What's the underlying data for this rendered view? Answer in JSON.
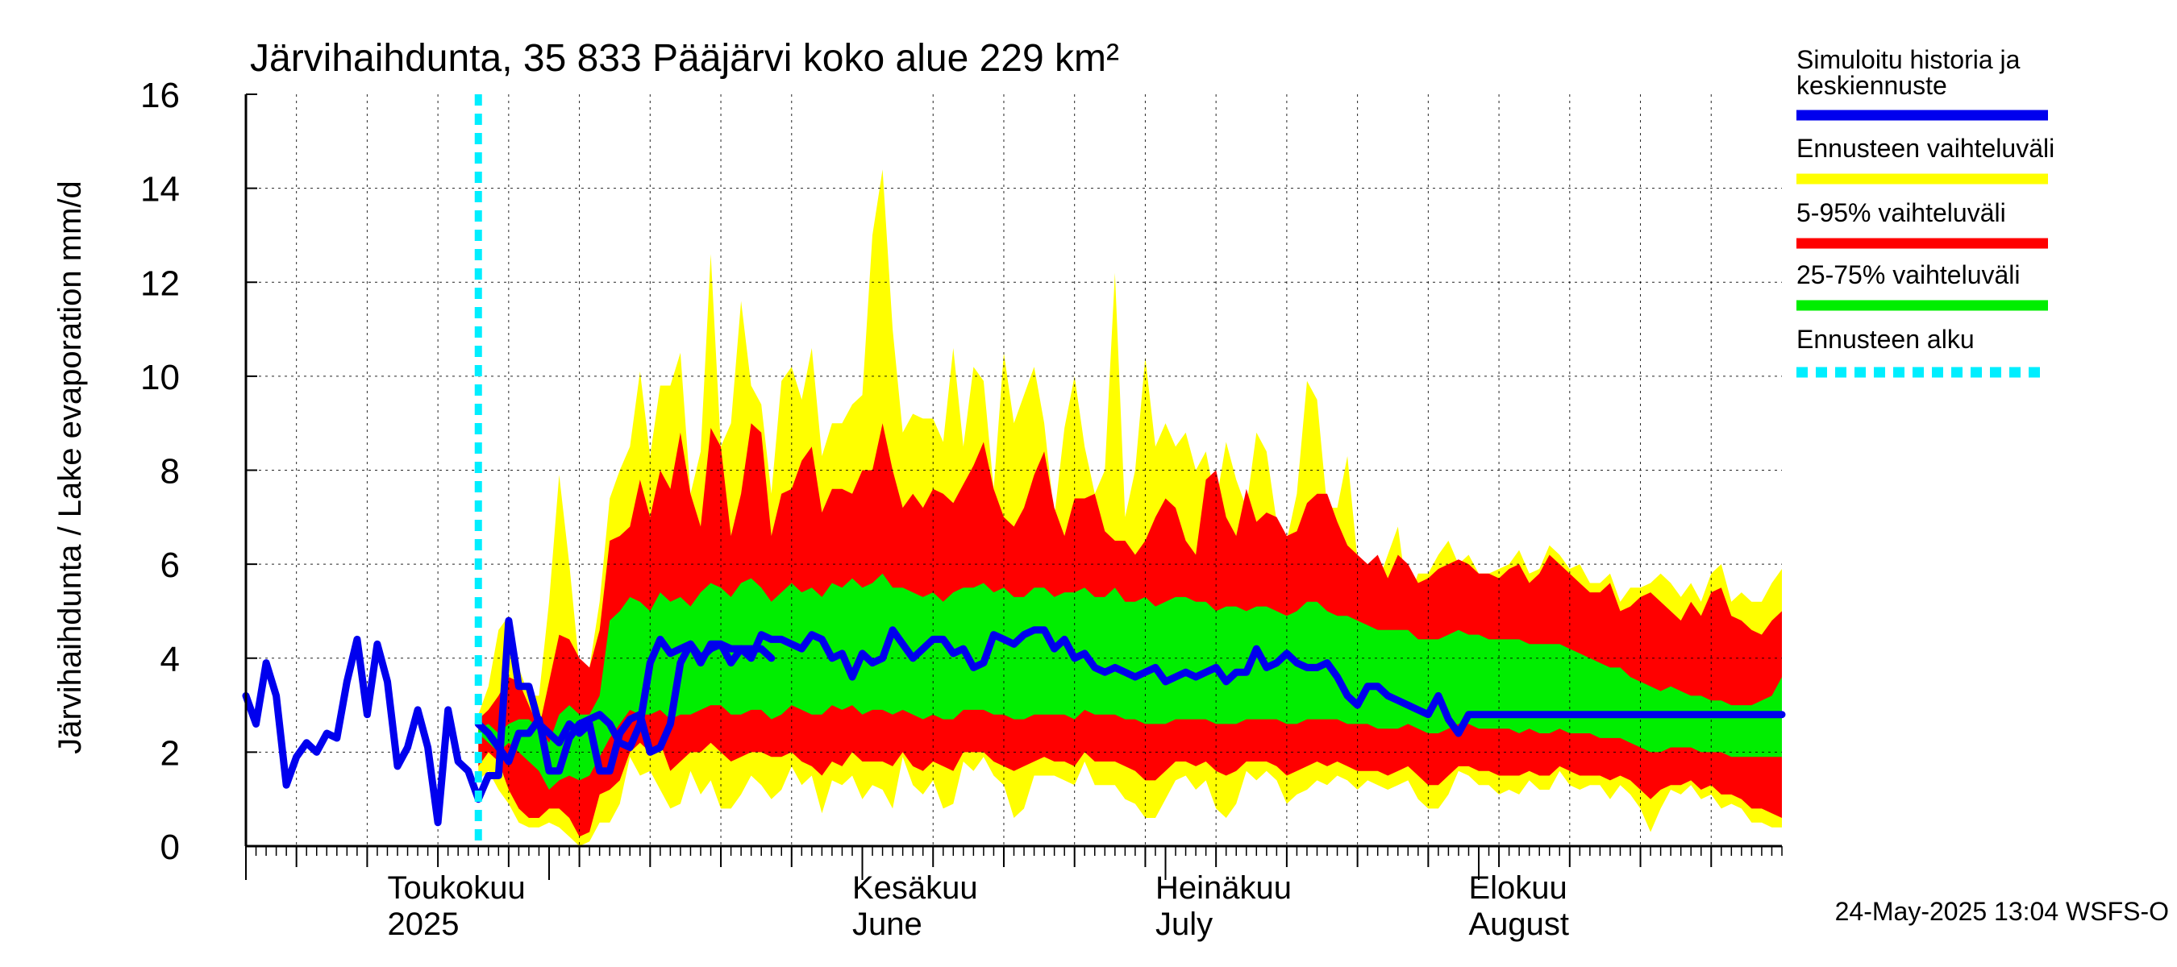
{
  "chart_data": {
    "type": "area",
    "title": "Järvihaihdunta, 35 833 Pääjärvi koko alue 229 km²",
    "ylabel": "Järvihaihdunta / Lake evaporation   mm/d",
    "xlabel": "",
    "ylim": [
      0,
      16
    ],
    "yticks": [
      0,
      2,
      4,
      6,
      8,
      10,
      12,
      14,
      16
    ],
    "grid": true,
    "legend_position": "right",
    "footer": "24-May-2025 13:04 WSFS-O",
    "x_start": "2025-04-01",
    "x_end": "2025-08-31",
    "forecast_start": "2025-04-24",
    "month_labels": [
      {
        "date": "2025-04-15",
        "line1": "Toukokuu",
        "line2": "2025"
      },
      {
        "date": "2025-05-31",
        "line1": "Kesäkuu",
        "line2": "June"
      },
      {
        "date": "2025-06-30",
        "line1": "Heinäkuu",
        "line2": "July"
      },
      {
        "date": "2025-07-31",
        "line1": "Elokuu",
        "line2": "August"
      }
    ],
    "month_boundaries": [
      "2025-04-01",
      "2025-05-01",
      "2025-06-01",
      "2025-07-01",
      "2025-08-01"
    ],
    "week_ticks": [
      "2025-04-06",
      "2025-04-13",
      "2025-04-20",
      "2025-04-27",
      "2025-05-04",
      "2025-05-11",
      "2025-05-18",
      "2025-05-25",
      "2025-06-08",
      "2025-06-15",
      "2025-06-22",
      "2025-06-29",
      "2025-07-06",
      "2025-07-13",
      "2025-07-20",
      "2025-07-27",
      "2025-08-03",
      "2025-08-10",
      "2025-08-17",
      "2025-08-24"
    ],
    "legend": [
      {
        "label": "Simuloitu historia ja keskiennuste",
        "color": "#0000ee",
        "style": "solid"
      },
      {
        "label": "Ennusteen vaihteluväli",
        "color": "#ffff00",
        "style": "solid"
      },
      {
        "label": "5-95% vaihteluväli",
        "color": "#ff0000",
        "style": "solid"
      },
      {
        "label": "25-75% vaihteluväli",
        "color": "#00ee00",
        "style": "solid"
      },
      {
        "label": "Ennusteen alku",
        "color": "#00eeff",
        "style": "dashed"
      }
    ],
    "history": {
      "name": "Simuloitu historia ja keskiennuste",
      "x": [
        "2025-04-01",
        "2025-04-02",
        "2025-04-03",
        "2025-04-04",
        "2025-04-05",
        "2025-04-06",
        "2025-04-07",
        "2025-04-08",
        "2025-04-09",
        "2025-04-10",
        "2025-04-11",
        "2025-04-12",
        "2025-04-13",
        "2025-04-14",
        "2025-04-15",
        "2025-04-16",
        "2025-04-17",
        "2025-04-18",
        "2025-04-19",
        "2025-04-20",
        "2025-04-21",
        "2025-04-22",
        "2025-04-23",
        "2025-04-24",
        "2025-04-25",
        "2025-04-26",
        "2025-04-27",
        "2025-04-28",
        "2025-04-29",
        "2025-04-30",
        "2025-05-01",
        "2025-05-02",
        "2025-05-03",
        "2025-05-04",
        "2025-05-05",
        "2025-05-06",
        "2025-05-07",
        "2025-05-08",
        "2025-05-09",
        "2025-05-10",
        "2025-05-11",
        "2025-05-12",
        "2025-05-13",
        "2025-05-14",
        "2025-05-15",
        "2025-05-16",
        "2025-05-17",
        "2025-05-18",
        "2025-05-19",
        "2025-05-20",
        "2025-05-21",
        "2025-05-22",
        "2025-05-23"
      ],
      "y": [
        3.2,
        2.6,
        3.9,
        3.2,
        1.3,
        1.9,
        2.2,
        2.0,
        2.4,
        2.3,
        3.5,
        4.4,
        2.8,
        4.3,
        3.5,
        1.7,
        2.1,
        2.9,
        2.1,
        0.5,
        2.9,
        1.8,
        1.6,
        1.0,
        1.5,
        1.5,
        4.8,
        3.4,
        3.4,
        2.6,
        2.4,
        2.2,
        2.6,
        2.4,
        2.6,
        1.6,
        1.6,
        2.4,
        2.7,
        2.8,
        2.0,
        2.1,
        2.6,
        3.9,
        4.3,
        4.0,
        4.2,
        4.3,
        3.9,
        4.2,
        4.2,
        4.2,
        4.0
      ]
    },
    "forecast": {
      "x": [
        "2025-04-24",
        "2025-04-25",
        "2025-04-26",
        "2025-04-27",
        "2025-04-28",
        "2025-04-29",
        "2025-04-30",
        "2025-05-01",
        "2025-05-02",
        "2025-05-03",
        "2025-05-04",
        "2025-05-05",
        "2025-05-06",
        "2025-05-07",
        "2025-05-08",
        "2025-05-09",
        "2025-05-10",
        "2025-05-11",
        "2025-05-12",
        "2025-05-13",
        "2025-05-14",
        "2025-05-15",
        "2025-05-16",
        "2025-05-17",
        "2025-05-18",
        "2025-05-19",
        "2025-05-20",
        "2025-05-21",
        "2025-05-22",
        "2025-05-23",
        "2025-05-24",
        "2025-05-25",
        "2025-05-26",
        "2025-05-27",
        "2025-05-28",
        "2025-05-29",
        "2025-05-30",
        "2025-05-31",
        "2025-06-01",
        "2025-06-02",
        "2025-06-03",
        "2025-06-04",
        "2025-06-05",
        "2025-06-06",
        "2025-06-07",
        "2025-06-08",
        "2025-06-09",
        "2025-06-10",
        "2025-06-11",
        "2025-06-12",
        "2025-06-13",
        "2025-06-14",
        "2025-06-15",
        "2025-06-16",
        "2025-06-17",
        "2025-06-18",
        "2025-06-19",
        "2025-06-20",
        "2025-06-21",
        "2025-06-22",
        "2025-06-23",
        "2025-06-24",
        "2025-06-25",
        "2025-06-26",
        "2025-06-27",
        "2025-06-28",
        "2025-06-29",
        "2025-06-30",
        "2025-07-01",
        "2025-07-02",
        "2025-07-03",
        "2025-07-04",
        "2025-07-05",
        "2025-07-06",
        "2025-07-07",
        "2025-07-08",
        "2025-07-09",
        "2025-07-10",
        "2025-07-11",
        "2025-07-12",
        "2025-07-13",
        "2025-07-14",
        "2025-07-15",
        "2025-07-16",
        "2025-07-17",
        "2025-07-18",
        "2025-07-19",
        "2025-07-20",
        "2025-07-21",
        "2025-07-22",
        "2025-07-23",
        "2025-07-24",
        "2025-07-25",
        "2025-07-26",
        "2025-07-27",
        "2025-07-28",
        "2025-07-29",
        "2025-07-30",
        "2025-07-31",
        "2025-08-01",
        "2025-08-02",
        "2025-08-03",
        "2025-08-04",
        "2025-08-05",
        "2025-08-06",
        "2025-08-07",
        "2025-08-08",
        "2025-08-09",
        "2025-08-10",
        "2025-08-11",
        "2025-08-12",
        "2025-08-13",
        "2025-08-14",
        "2025-08-15",
        "2025-08-16",
        "2025-08-17",
        "2025-08-18",
        "2025-08-19",
        "2025-08-20",
        "2025-08-21",
        "2025-08-22",
        "2025-08-23",
        "2025-08-24",
        "2025-08-25",
        "2025-08-26",
        "2025-08-27",
        "2025-08-28",
        "2025-08-29",
        "2025-08-30",
        "2025-08-31"
      ],
      "min": [
        1.4,
        1.6,
        1.2,
        0.9,
        0.5,
        0.4,
        0.4,
        0.5,
        0.4,
        0.2,
        0.0,
        0.1,
        0.5,
        0.5,
        0.9,
        1.9,
        1.5,
        1.6,
        1.2,
        0.8,
        0.9,
        1.6,
        1.1,
        1.4,
        0.8,
        0.8,
        1.1,
        1.5,
        1.3,
        1.0,
        1.2,
        1.7,
        1.3,
        1.5,
        0.7,
        1.4,
        1.3,
        1.5,
        1.0,
        1.3,
        1.2,
        0.8,
        1.9,
        1.3,
        1.1,
        1.4,
        0.8,
        0.9,
        1.8,
        1.6,
        1.9,
        1.5,
        1.3,
        0.6,
        0.8,
        1.5,
        1.5,
        1.5,
        1.4,
        1.3,
        1.8,
        1.3,
        1.3,
        1.3,
        1.0,
        0.9,
        0.6,
        0.6,
        1.0,
        1.4,
        1.5,
        1.2,
        1.4,
        0.8,
        0.6,
        0.9,
        1.6,
        1.4,
        1.6,
        1.4,
        0.9,
        1.1,
        1.2,
        1.4,
        1.3,
        1.5,
        1.4,
        1.2,
        1.4,
        1.3,
        1.2,
        1.3,
        1.4,
        1.0,
        0.8,
        0.8,
        1.1,
        1.6,
        1.5,
        1.3,
        1.3,
        1.1,
        1.2,
        1.1,
        1.4,
        1.2,
        1.2,
        1.6,
        1.3,
        1.2,
        1.3,
        1.3,
        1.0,
        1.3,
        1.1,
        0.8,
        0.3,
        0.8,
        1.2,
        1.1,
        1.3,
        1.0,
        1.1,
        0.8,
        0.9,
        0.8,
        0.5,
        0.5,
        0.4,
        0.4
      ],
      "max": [
        2.8,
        3.4,
        4.6,
        4.9,
        3.8,
        3.2,
        3.2,
        5.2,
        7.9,
        6.0,
        3.8,
        3.8,
        5.2,
        7.4,
        8.0,
        8.5,
        10.1,
        8.3,
        9.8,
        9.8,
        10.5,
        7.5,
        8.4,
        12.6,
        8.5,
        9.0,
        11.6,
        9.8,
        9.4,
        7.5,
        9.9,
        10.2,
        9.5,
        10.6,
        8.3,
        9.0,
        9.0,
        9.4,
        9.6,
        13.0,
        14.4,
        11.0,
        8.8,
        9.2,
        9.1,
        9.1,
        8.6,
        10.6,
        8.5,
        10.2,
        9.9,
        7.6,
        10.5,
        9.0,
        9.6,
        10.2,
        9.0,
        7.0,
        8.9,
        10.0,
        8.5,
        7.5,
        8.0,
        12.2,
        7.0,
        8.0,
        10.4,
        8.5,
        9.0,
        8.5,
        8.8,
        8.0,
        8.4,
        7.3,
        8.6,
        7.8,
        7.2,
        8.8,
        8.4,
        6.9,
        6.5,
        7.5,
        9.9,
        9.5,
        7.2,
        7.2,
        8.3,
        6.1,
        5.8,
        5.6,
        6.2,
        6.8,
        5.2,
        5.8,
        5.8,
        6.2,
        6.5,
        6.0,
        6.2,
        5.8,
        5.8,
        5.9,
        6.0,
        6.3,
        5.8,
        5.9,
        6.4,
        6.2,
        5.9,
        6.0,
        5.6,
        5.6,
        5.8,
        5.2,
        5.5,
        5.5,
        5.6,
        5.8,
        5.6,
        5.3,
        5.6,
        5.2,
        5.8,
        6.0,
        5.2,
        5.4,
        5.2,
        5.2,
        5.6,
        5.9
      ],
      "p05": [
        1.7,
        2.0,
        1.8,
        1.2,
        0.8,
        0.6,
        0.6,
        0.8,
        0.8,
        0.6,
        0.2,
        0.3,
        1.1,
        1.2,
        1.4,
        2.0,
        2.2,
        2.0,
        2.2,
        1.6,
        1.8,
        2.0,
        2.0,
        2.2,
        2.0,
        1.8,
        1.9,
        2.0,
        2.0,
        1.9,
        1.9,
        2.0,
        1.8,
        1.7,
        1.5,
        1.8,
        1.7,
        2.0,
        1.8,
        1.8,
        1.8,
        1.7,
        2.0,
        1.7,
        1.6,
        1.8,
        1.7,
        1.6,
        2.0,
        2.0,
        2.0,
        1.8,
        1.7,
        1.6,
        1.7,
        1.8,
        1.9,
        1.8,
        1.8,
        1.7,
        2.0,
        1.8,
        1.8,
        1.8,
        1.7,
        1.6,
        1.4,
        1.4,
        1.6,
        1.8,
        1.8,
        1.7,
        1.8,
        1.6,
        1.5,
        1.6,
        1.8,
        1.8,
        1.8,
        1.7,
        1.5,
        1.6,
        1.7,
        1.8,
        1.7,
        1.8,
        1.7,
        1.6,
        1.6,
        1.6,
        1.5,
        1.6,
        1.7,
        1.5,
        1.3,
        1.3,
        1.5,
        1.7,
        1.7,
        1.6,
        1.6,
        1.5,
        1.5,
        1.5,
        1.6,
        1.5,
        1.5,
        1.7,
        1.6,
        1.5,
        1.5,
        1.5,
        1.4,
        1.5,
        1.4,
        1.2,
        1.0,
        1.2,
        1.3,
        1.3,
        1.4,
        1.2,
        1.3,
        1.1,
        1.1,
        1.0,
        0.8,
        0.8,
        0.7,
        0.6
      ],
      "p25": [
        2.4,
        2.2,
        2.0,
        2.2,
        2.0,
        1.8,
        1.6,
        1.2,
        1.4,
        1.5,
        1.4,
        1.5,
        1.9,
        2.3,
        2.6,
        2.9,
        2.8,
        2.8,
        2.9,
        2.7,
        2.8,
        2.8,
        2.9,
        3.0,
        3.0,
        2.8,
        2.8,
        2.9,
        2.9,
        2.7,
        2.8,
        3.0,
        2.9,
        2.8,
        2.8,
        3.0,
        2.9,
        3.0,
        2.8,
        2.9,
        2.9,
        2.8,
        2.9,
        2.8,
        2.7,
        2.8,
        2.7,
        2.7,
        2.9,
        2.9,
        2.9,
        2.8,
        2.8,
        2.7,
        2.7,
        2.8,
        2.8,
        2.8,
        2.8,
        2.7,
        2.9,
        2.8,
        2.8,
        2.8,
        2.7,
        2.7,
        2.6,
        2.6,
        2.6,
        2.7,
        2.7,
        2.7,
        2.7,
        2.6,
        2.6,
        2.6,
        2.7,
        2.7,
        2.7,
        2.7,
        2.6,
        2.6,
        2.7,
        2.7,
        2.7,
        2.7,
        2.6,
        2.6,
        2.6,
        2.5,
        2.5,
        2.5,
        2.6,
        2.5,
        2.4,
        2.4,
        2.5,
        2.6,
        2.6,
        2.5,
        2.5,
        2.5,
        2.5,
        2.4,
        2.5,
        2.4,
        2.4,
        2.5,
        2.4,
        2.4,
        2.4,
        2.3,
        2.3,
        2.3,
        2.2,
        2.1,
        2.0,
        2.0,
        2.1,
        2.1,
        2.1,
        2.0,
        2.0,
        2.0,
        1.9,
        1.9,
        1.9,
        1.9,
        1.9,
        1.9
      ],
      "p75": [
        2.5,
        2.6,
        2.4,
        2.6,
        2.7,
        2.7,
        2.5,
        2.2,
        2.8,
        3.0,
        2.8,
        2.8,
        3.2,
        4.8,
        5.0,
        5.3,
        5.2,
        5.0,
        5.4,
        5.2,
        5.3,
        5.1,
        5.4,
        5.6,
        5.5,
        5.3,
        5.6,
        5.7,
        5.5,
        5.2,
        5.4,
        5.6,
        5.4,
        5.5,
        5.3,
        5.6,
        5.5,
        5.7,
        5.5,
        5.6,
        5.8,
        5.5,
        5.5,
        5.4,
        5.3,
        5.4,
        5.2,
        5.4,
        5.5,
        5.5,
        5.6,
        5.4,
        5.5,
        5.3,
        5.3,
        5.5,
        5.5,
        5.3,
        5.4,
        5.4,
        5.5,
        5.3,
        5.3,
        5.5,
        5.2,
        5.2,
        5.3,
        5.1,
        5.2,
        5.3,
        5.3,
        5.2,
        5.2,
        5.0,
        5.1,
        5.1,
        5.0,
        5.1,
        5.1,
        5.0,
        4.9,
        5.0,
        5.2,
        5.2,
        5.0,
        4.9,
        4.9,
        4.8,
        4.7,
        4.6,
        4.6,
        4.6,
        4.6,
        4.4,
        4.4,
        4.4,
        4.5,
        4.6,
        4.5,
        4.5,
        4.4,
        4.4,
        4.4,
        4.4,
        4.3,
        4.3,
        4.3,
        4.3,
        4.2,
        4.1,
        4.0,
        3.9,
        3.8,
        3.8,
        3.6,
        3.5,
        3.4,
        3.3,
        3.4,
        3.3,
        3.2,
        3.2,
        3.1,
        3.1,
        3.0,
        3.0,
        3.0,
        3.1,
        3.2,
        3.6
      ],
      "p95": [
        2.7,
        2.9,
        3.2,
        3.6,
        3.5,
        3.0,
        2.5,
        3.5,
        4.5,
        4.4,
        4.0,
        3.8,
        4.6,
        6.5,
        6.6,
        6.8,
        7.8,
        7.0,
        8.0,
        7.6,
        8.8,
        7.5,
        6.8,
        8.9,
        8.5,
        6.6,
        7.5,
        9.0,
        8.8,
        6.6,
        7.5,
        7.6,
        8.2,
        8.5,
        7.1,
        7.6,
        7.6,
        7.5,
        8.0,
        8.0,
        9.0,
        8.0,
        7.2,
        7.5,
        7.2,
        7.6,
        7.5,
        7.3,
        7.7,
        8.1,
        8.6,
        7.6,
        7.0,
        6.8,
        7.2,
        7.9,
        8.4,
        7.2,
        6.6,
        7.4,
        7.4,
        7.5,
        6.7,
        6.5,
        6.5,
        6.2,
        6.5,
        7.0,
        7.4,
        7.2,
        6.5,
        6.2,
        7.8,
        8.0,
        7.0,
        6.6,
        7.6,
        6.9,
        7.1,
        7.0,
        6.6,
        6.7,
        7.3,
        7.5,
        7.5,
        6.9,
        6.4,
        6.2,
        6.0,
        6.2,
        5.7,
        6.2,
        6.0,
        5.6,
        5.7,
        5.9,
        6.0,
        6.1,
        6.0,
        5.8,
        5.8,
        5.7,
        5.9,
        6.0,
        5.6,
        5.8,
        6.2,
        6.0,
        5.8,
        5.6,
        5.4,
        5.4,
        5.6,
        5.0,
        5.1,
        5.3,
        5.4,
        5.2,
        5.0,
        4.8,
        5.2,
        4.9,
        5.4,
        5.5,
        4.9,
        4.8,
        4.6,
        4.5,
        4.8,
        5.0
      ],
      "median": [
        2.6,
        2.4,
        2.1,
        1.8,
        2.4,
        2.4,
        2.7,
        1.6,
        1.6,
        2.3,
        2.6,
        2.7,
        2.8,
        2.6,
        2.2,
        2.1,
        2.6,
        3.9,
        4.4,
        4.1,
        4.2,
        4.3,
        3.9,
        4.3,
        4.3,
        4.2,
        4.2,
        4.0,
        4.5,
        4.4,
        4.4,
        4.3,
        4.2,
        4.5,
        4.4,
        4.0,
        4.1,
        3.6,
        4.1,
        3.9,
        4.0,
        4.6,
        4.3,
        4.0,
        4.2,
        4.4,
        4.4,
        4.1,
        4.2,
        3.8,
        3.9,
        4.5,
        4.4,
        4.3,
        4.5,
        4.6,
        4.6,
        4.2,
        4.4,
        4.0,
        4.1,
        3.8,
        3.7,
        3.8,
        3.7,
        3.6,
        3.7,
        3.8,
        3.5,
        3.6,
        3.7,
        3.6,
        3.7,
        3.8,
        3.5,
        3.7,
        3.7,
        4.2,
        3.8,
        3.9,
        4.1,
        3.9,
        3.8,
        3.8,
        3.9,
        3.6,
        3.2,
        3.0,
        3.4,
        3.4,
        3.2,
        3.1,
        3.0,
        2.9,
        2.8,
        3.2,
        2.7,
        2.4,
        2.8,
        2.8,
        2.8,
        2.8,
        2.8,
        2.8,
        2.8,
        2.8,
        2.8,
        2.8,
        2.8,
        2.8,
        2.8,
        2.8,
        2.8,
        2.8,
        2.8,
        2.8,
        2.8,
        2.8,
        2.8,
        2.8,
        2.8,
        2.8,
        2.8,
        2.8,
        2.8,
        2.8,
        2.8,
        2.8,
        2.8,
        2.8
      ]
    }
  }
}
